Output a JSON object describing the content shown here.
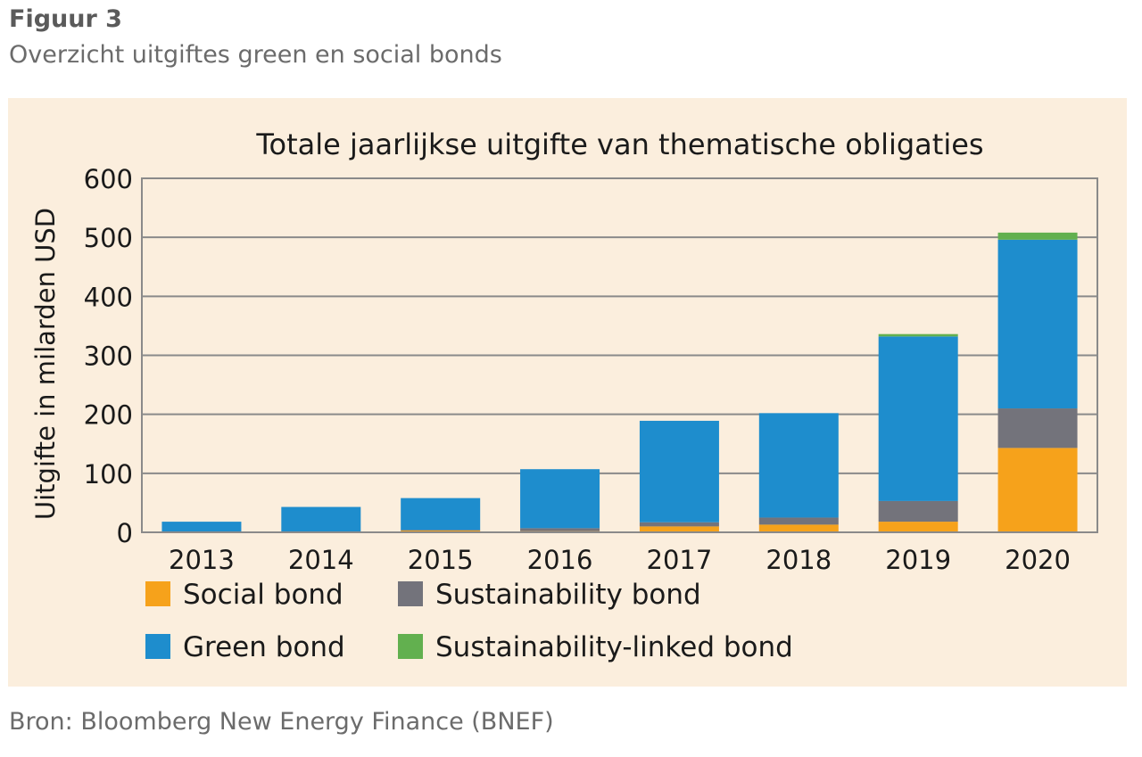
{
  "figure": {
    "label": "Figuur 3",
    "subtitle": "Overzicht uitgiftes green en social bonds",
    "source": "Bron: Bloomberg New Energy Finance (BNEF)"
  },
  "colors": {
    "panel_background": "#fbeedd",
    "social": "#f6a21b",
    "sustainability": "#73737b",
    "green": "#1e8dcd",
    "sustainability_linked": "#62b04f",
    "gridline": "#8a8a8a"
  },
  "chart_data": {
    "type": "bar",
    "stacked": true,
    "title": "Totale jaarlijkse uitgifte van thematische obligaties",
    "xlabel": "",
    "ylabel": "Uitgifte in milarden USD",
    "ylim": [
      0,
      600
    ],
    "yticks": [
      0,
      100,
      200,
      300,
      400,
      500,
      600
    ],
    "grid": true,
    "legend_position": "bottom",
    "categories": [
      "2013",
      "2014",
      "2015",
      "2016",
      "2017",
      "2018",
      "2019",
      "2020"
    ],
    "series": [
      {
        "name": "Social bond",
        "color": "#f6a21b",
        "values": [
          0,
          1,
          3,
          2,
          10,
          13,
          18,
          143
        ]
      },
      {
        "name": "Sustainability bond",
        "color": "#73737b",
        "values": [
          0,
          0,
          1,
          5,
          7,
          12,
          35,
          67
        ]
      },
      {
        "name": "Green bond",
        "color": "#1e8dcd",
        "values": [
          18,
          42,
          54,
          100,
          172,
          177,
          279,
          286
        ]
      },
      {
        "name": "Sustainability-linked bond",
        "color": "#62b04f",
        "values": [
          0,
          0,
          0,
          0,
          0,
          0,
          4,
          12
        ]
      }
    ]
  }
}
